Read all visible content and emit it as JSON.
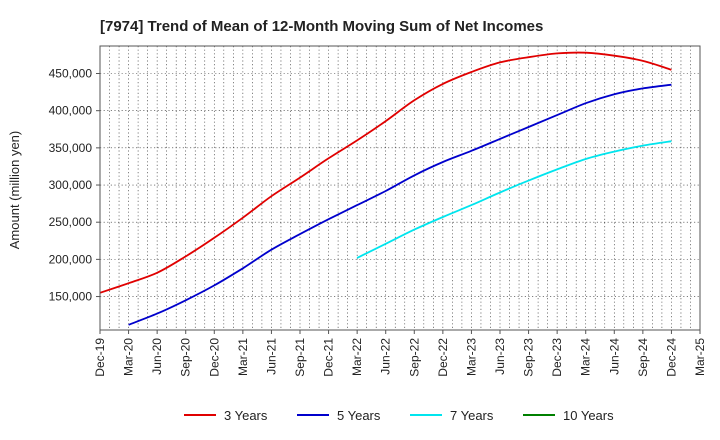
{
  "chart_data": {
    "type": "line",
    "title": "[7974]  Trend of Mean of 12-Month Moving Sum of Net Incomes",
    "ylabel": "Amount (million yen)",
    "xlabel": "",
    "x_ticks": [
      "Dec-19",
      "Mar-20",
      "Jun-20",
      "Sep-20",
      "Dec-20",
      "Mar-21",
      "Jun-21",
      "Sep-21",
      "Dec-21",
      "Mar-22",
      "Jun-22",
      "Sep-22",
      "Dec-22",
      "Mar-23",
      "Jun-23",
      "Sep-23",
      "Dec-23",
      "Mar-24",
      "Jun-24",
      "Sep-24",
      "Dec-24",
      "Mar-25"
    ],
    "y_ticks": [
      150000,
      200000,
      250000,
      300000,
      350000,
      400000,
      450000
    ],
    "y_tick_labels": [
      "150,000",
      "200,000",
      "250,000",
      "300,000",
      "350,000",
      "400,000",
      "450,000"
    ],
    "ylim": [
      105000,
      487000
    ],
    "grid": true,
    "legend_position": "bottom",
    "series": [
      {
        "name": "3 Years",
        "color": "#e00000",
        "x": [
          "Dec-19",
          "Mar-20",
          "Jun-20",
          "Sep-20",
          "Dec-20",
          "Mar-21",
          "Jun-21",
          "Sep-21",
          "Dec-21",
          "Mar-22",
          "Jun-22",
          "Sep-22",
          "Dec-22",
          "Mar-23",
          "Jun-23",
          "Sep-23",
          "Dec-23",
          "Mar-24",
          "Jun-24",
          "Sep-24",
          "Dec-24"
        ],
        "values": [
          155000,
          168000,
          182000,
          204000,
          229000,
          256000,
          285000,
          310000,
          336000,
          360000,
          386000,
          414000,
          436000,
          452000,
          465000,
          472000,
          477000,
          478000,
          474000,
          467000,
          455000
        ]
      },
      {
        "name": "5 Years",
        "color": "#0000cc",
        "x": [
          "Mar-20",
          "Jun-20",
          "Sep-20",
          "Dec-20",
          "Mar-21",
          "Jun-21",
          "Sep-21",
          "Dec-21",
          "Mar-22",
          "Jun-22",
          "Sep-22",
          "Dec-22",
          "Mar-23",
          "Jun-23",
          "Sep-23",
          "Dec-23",
          "Mar-24",
          "Jun-24",
          "Sep-24",
          "Dec-24"
        ],
        "values": [
          112000,
          127000,
          145000,
          165000,
          188000,
          213000,
          234000,
          254000,
          273000,
          292000,
          313000,
          331000,
          346000,
          362000,
          378000,
          394000,
          410000,
          422000,
          430000,
          435000
        ]
      },
      {
        "name": "7 Years",
        "color": "#00e5ee",
        "x": [
          "Mar-22",
          "Jun-22",
          "Sep-22",
          "Dec-22",
          "Mar-23",
          "Jun-23",
          "Sep-23",
          "Dec-23",
          "Mar-24",
          "Jun-24",
          "Sep-24",
          "Dec-24"
        ],
        "values": [
          202000,
          221000,
          240000,
          257000,
          273000,
          290000,
          306000,
          321000,
          335000,
          345000,
          353000,
          359000
        ]
      },
      {
        "name": "10 Years",
        "color": "#008000",
        "x": [],
        "values": []
      }
    ]
  }
}
